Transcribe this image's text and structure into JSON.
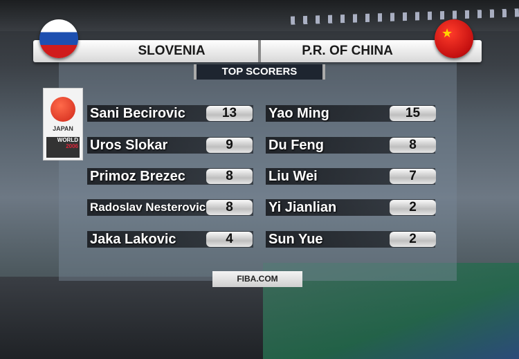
{
  "header": {
    "home_team": "SLOVENIA",
    "away_team": "P.R. OF CHINA"
  },
  "title": "TOP SCORERS",
  "home_scorers": [
    {
      "name": "Sani Becirovic",
      "points": "13"
    },
    {
      "name": "Uros Slokar",
      "points": "9"
    },
    {
      "name": "Primoz Brezec",
      "points": "8"
    },
    {
      "name": "Radoslav Nesterovic",
      "points": "8"
    },
    {
      "name": "Jaka Lakovic",
      "points": "4"
    }
  ],
  "away_scorers": [
    {
      "name": "Yao Ming",
      "points": "15"
    },
    {
      "name": "Du Feng",
      "points": "8"
    },
    {
      "name": "Liu Wei",
      "points": "7"
    },
    {
      "name": "Yi Jianlian",
      "points": "2"
    },
    {
      "name": "Sun Yue",
      "points": "2"
    }
  ],
  "event_logo": {
    "country": "JAPAN",
    "line1": "WORLD",
    "year": "2006"
  },
  "footer": "FIBA.COM",
  "colors": {
    "pill": "#d8d8d8",
    "panel": "#788796",
    "header": "#ffffff"
  }
}
